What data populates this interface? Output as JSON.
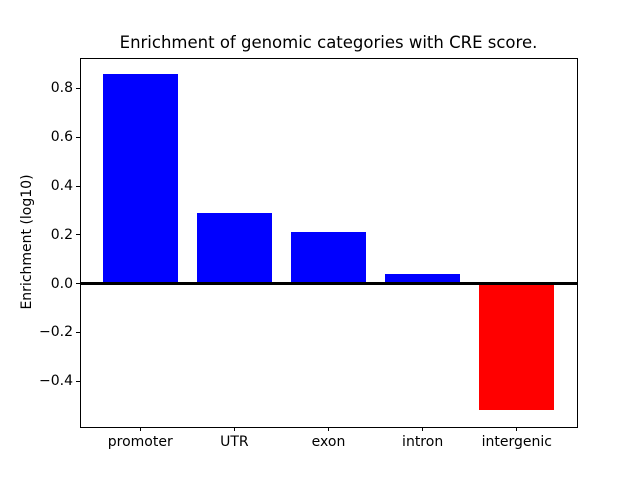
{
  "chart_data": {
    "type": "bar",
    "title": "Enrichment of genomic categories with CRE score.",
    "xlabel": "",
    "ylabel": "Enrichment (log10)",
    "categories": [
      "promoter",
      "UTR",
      "exon",
      "intron",
      "intergenic"
    ],
    "values": [
      0.86,
      0.29,
      0.21,
      0.04,
      -0.52
    ],
    "bar_colors": [
      "#0000ff",
      "#0000ff",
      "#0000ff",
      "#0000ff",
      "#ff0000"
    ],
    "positive_color": "#0000ff",
    "negative_color": "#ff0000",
    "bar_width_fraction": 0.8,
    "yticks": [
      0.8,
      0.6,
      0.4,
      0.2,
      0.0,
      -0.2,
      -0.4
    ],
    "ytick_labels": [
      "0.8",
      "0.6",
      "0.4",
      "0.2",
      "0.0",
      "−0.2",
      "−0.4"
    ],
    "ylim": [
      -0.588,
      0.925
    ],
    "xlim": [
      -0.64,
      4.64
    ],
    "grid": false,
    "legend": "none",
    "zero_line": true,
    "axis_color": "#000000",
    "text_color": "#000000",
    "background_color": "#ffffff"
  }
}
